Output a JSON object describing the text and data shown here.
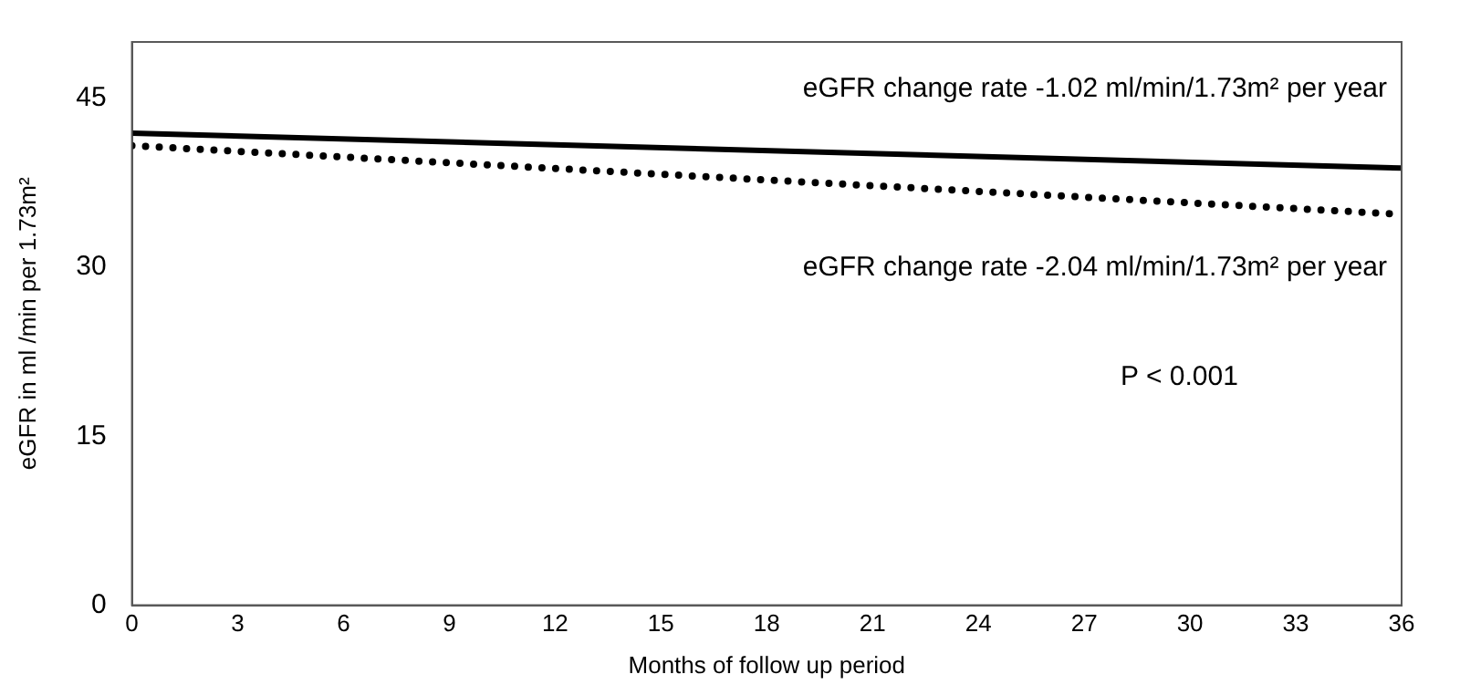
{
  "chart_data": {
    "type": "line",
    "xlabel": "Months of follow up period",
    "ylabel": "eGFR in ml /min per 1.73m²",
    "x": [
      0,
      36
    ],
    "xlim": [
      0,
      36
    ],
    "xticks": [
      0,
      3,
      6,
      9,
      12,
      15,
      18,
      21,
      24,
      27,
      30,
      33,
      36
    ],
    "ylim": [
      0,
      50
    ],
    "yticks": [
      0,
      15,
      30,
      45
    ],
    "grid": false,
    "legend": false,
    "marker": "none",
    "series": [
      {
        "color": "#000000",
        "values": [
          41.9,
          38.8
        ],
        "line_style": "solid"
      },
      {
        "color": "#000000",
        "values": [
          40.8,
          34.7
        ],
        "line_style": "dotted"
      }
    ],
    "annotations": [
      "eGFR change rate -1.02 ml/min/1.73m² per year",
      "eGFR change rate -2.04 ml/min/1.73m² per year",
      "P < 0.001"
    ]
  }
}
